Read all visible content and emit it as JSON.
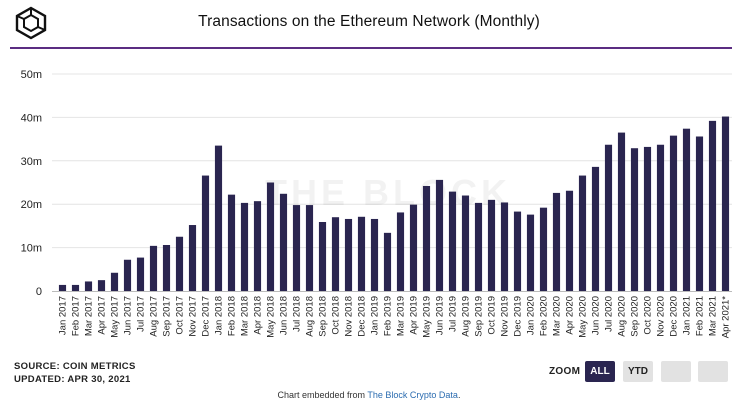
{
  "header": {
    "title": "Transactions on the Ethereum Network (Monthly)"
  },
  "logo": {
    "icon": "the-block-cube-icon"
  },
  "watermark": "THE BLOCK",
  "chart_data": {
    "type": "bar",
    "title": "Transactions on the Ethereum Network (Monthly)",
    "xlabel": "",
    "ylabel": "",
    "ylim": [
      0,
      50
    ],
    "yticks": [
      "0",
      "10m",
      "20m",
      "30m",
      "40m",
      "50m"
    ],
    "grid": true,
    "bar_color": "#2a2550",
    "categories": [
      "Jan 2017",
      "Feb 2017",
      "Mar 2017",
      "Apr 2017",
      "May 2017",
      "Jun 2017",
      "Jul 2017",
      "Aug 2017",
      "Sep 2017",
      "Oct 2017",
      "Nov 2017",
      "Dec 2017",
      "Jan 2018",
      "Feb 2018",
      "Mar 2018",
      "Apr 2018",
      "May 2018",
      "Jun 2018",
      "Jul 2018",
      "Aug 2018",
      "Sep 2018",
      "Oct 2018",
      "Nov 2018",
      "Dec 2018",
      "Jan 2019",
      "Feb 2019",
      "Mar 2019",
      "Apr 2019",
      "May 2019",
      "Jun 2019",
      "Jul 2019",
      "Aug 2019",
      "Sep 2019",
      "Oct 2019",
      "Nov 2019",
      "Dec 2019",
      "Jan 2020",
      "Feb 2020",
      "Mar 2020",
      "Apr 2020",
      "May 2020",
      "Jun 2020",
      "Jul 2020",
      "Aug 2020",
      "Sep 2020",
      "Oct 2020",
      "Nov 2020",
      "Dec 2020",
      "Jan 2021",
      "Feb 2021",
      "Mar 2021",
      "Apr 2021*"
    ],
    "values": [
      1.4,
      1.4,
      2.2,
      2.5,
      4.2,
      7.2,
      7.7,
      10.4,
      10.6,
      12.5,
      15.2,
      26.6,
      33.5,
      22.2,
      20.3,
      20.7,
      25.0,
      22.4,
      19.8,
      19.8,
      15.9,
      17.0,
      16.6,
      17.1,
      16.6,
      13.4,
      18.1,
      19.9,
      24.2,
      25.6,
      22.9,
      22.0,
      20.3,
      21.0,
      20.4,
      18.3,
      17.6,
      19.2,
      22.6,
      23.1,
      26.6,
      28.6,
      33.7,
      36.5,
      32.9,
      33.2,
      33.7,
      35.8,
      37.4,
      35.6,
      39.2,
      40.2
    ],
    "values_unit": "millions of transactions"
  },
  "footer": {
    "source_line": "SOURCE: COIN METRICS",
    "updated_line": "UPDATED: APR 30, 2021",
    "embed_prefix": "Chart embedded from ",
    "embed_link": "The Block Crypto Data",
    "embed_suffix": "."
  },
  "zoom": {
    "label": "ZOOM",
    "buttons": [
      {
        "label": "ALL",
        "active": true
      },
      {
        "label": "YTD",
        "active": false
      },
      {
        "label": "",
        "active": false
      },
      {
        "label": "",
        "active": false
      }
    ]
  }
}
